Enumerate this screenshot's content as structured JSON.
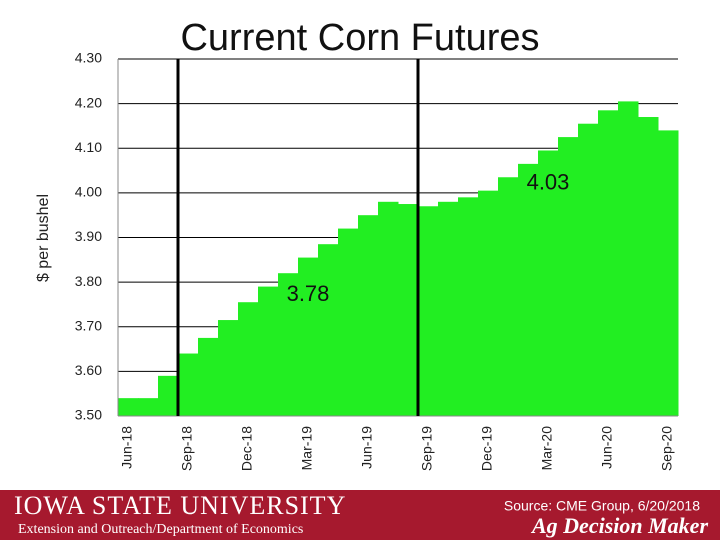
{
  "chart_data": {
    "type": "bar",
    "title": "Current Corn Futures",
    "y_label": "$ per bushel",
    "categories": [
      "Jun-18",
      null,
      null,
      "Sep-18",
      null,
      null,
      "Dec-18",
      null,
      null,
      "Mar-19",
      null,
      null,
      "Jun-19",
      null,
      null,
      "Sep-19",
      null,
      null,
      "Dec-19",
      null,
      null,
      "Mar-20",
      null,
      null,
      "Jun-20",
      null,
      null,
      "Sep-20"
    ],
    "values": [
      3.54,
      3.54,
      3.59,
      3.64,
      3.675,
      3.715,
      3.755,
      3.79,
      3.82,
      3.855,
      3.885,
      3.92,
      3.95,
      3.98,
      3.975,
      3.97,
      3.98,
      3.99,
      4.005,
      4.035,
      4.065,
      4.095,
      4.125,
      4.155,
      4.185,
      4.205,
      4.17,
      4.14
    ],
    "color": "#22ee22",
    "ylim": [
      3.5,
      4.3
    ],
    "yticks": [
      {
        "value": 3.5,
        "label": "3.50"
      },
      {
        "value": 3.6,
        "label": "3.60"
      },
      {
        "value": 3.7,
        "label": "3.70"
      },
      {
        "value": 3.8,
        "label": "3.80"
      },
      {
        "value": 3.9,
        "label": "3.90"
      },
      {
        "value": 4.0,
        "label": "4.00"
      },
      {
        "value": 4.1,
        "label": "4.10"
      },
      {
        "value": 4.2,
        "label": "4.20"
      },
      {
        "value": 4.3,
        "label": "4.30"
      }
    ],
    "grid": true,
    "vlines": [
      "Sep-18",
      "Sep-19"
    ],
    "annotations": [
      3.78,
      4.03
    ]
  },
  "footer": {
    "university": "IOWA STATE UNIVERSITY",
    "department": "Extension and Outreach/Department of Economics",
    "source": "Source: CME Group, 6/20/2018",
    "brand": "Ag Decision Maker"
  }
}
